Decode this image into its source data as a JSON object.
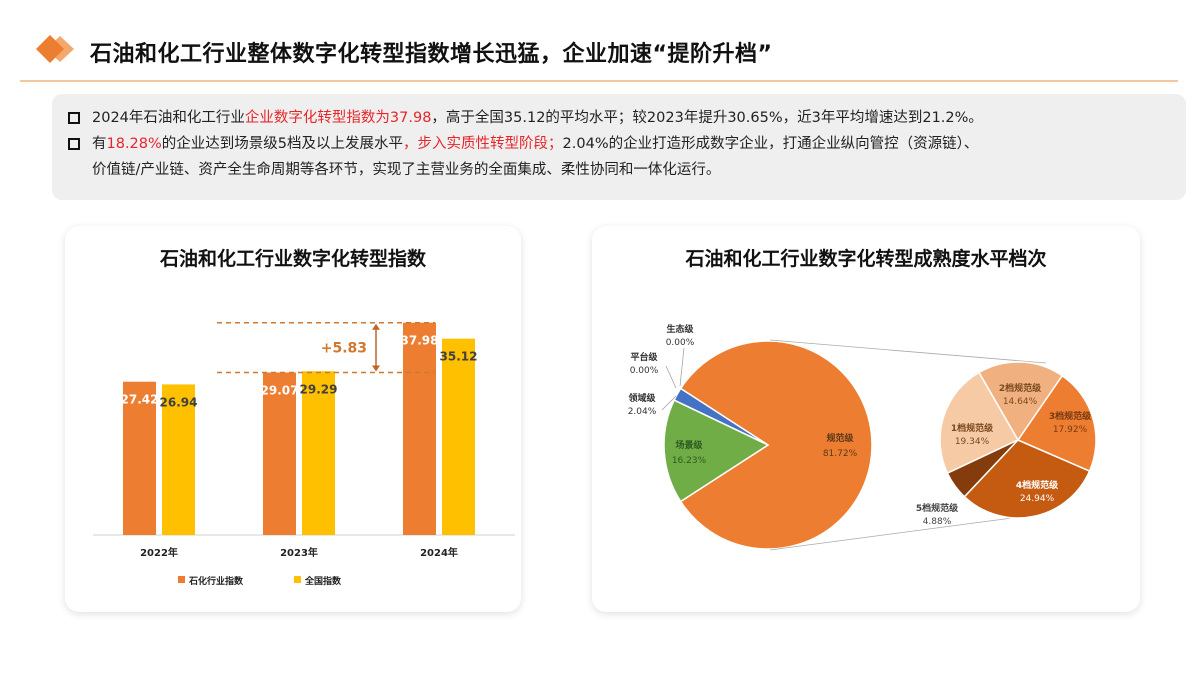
{
  "header": {
    "title": "石油和化工行业整体数字化转型指数增长迅猛，企业加速“提阶升档”",
    "icon": "orange-diamond-icon"
  },
  "summary": {
    "line1": {
      "a": "2024年石油和化工行业",
      "b": "企业数字化转型指数为37.98",
      "c": "，高于全国35.12的平均水平；较2023年提升30.65%，近3年平均增速达到21.2%。"
    },
    "line2": {
      "a": "有",
      "b": "18.28%",
      "c": "的企业达到场景级5档及以上发展水平",
      "d": "，步入实质性转型阶段；",
      "e": "2.04%的企业打造形成数字企业，打通企业纵向管控（资源链）、"
    },
    "line3": "价值链/产业链、资产全生命周期等各环节，实现了主营业务的全面集成、柔性协同和一体化运行。"
  },
  "colors": {
    "accent": "#ed7d31",
    "highlight": "#e8262a",
    "industry": "#ed7d31",
    "national": "#ffc000"
  },
  "chart_data": [
    {
      "type": "bar",
      "title": "石油和化工行业数字化转型指数",
      "categories": [
        "2022年",
        "2023年",
        "2024年"
      ],
      "series": [
        {
          "name": "石化行业指数",
          "color": "#ed7d31",
          "values": [
            27.42,
            29.07,
            37.98
          ]
        },
        {
          "name": "全国指数",
          "color": "#ffc000",
          "values": [
            26.94,
            29.29,
            35.12
          ]
        }
      ],
      "ylim": [
        0,
        38
      ],
      "annotation": "+5.83",
      "legend": "bottom",
      "grid": false
    },
    {
      "type": "pie",
      "title": "石油和化工行业数字化转型成熟度水平档次",
      "slices": [
        {
          "label": "规范级",
          "value": 81.72,
          "text": "81.72%",
          "color": "#ed7d31"
        },
        {
          "label": "场景级",
          "value": 16.23,
          "text": "16.23%",
          "color": "#70ad47"
        },
        {
          "label": "领域级",
          "value": 2.04,
          "text": "2.04%",
          "color": "#4472c4"
        },
        {
          "label": "平台级",
          "value": 0,
          "text": "0.00%",
          "color": "#a5a5a5"
        },
        {
          "label": "生态级",
          "value": 0,
          "text": "0.00%",
          "color": "#5b9bd5"
        }
      ],
      "breakdown_of": "规范级",
      "breakdown": [
        {
          "label": "1档规范级",
          "value": 19.34,
          "text": "19.34%",
          "color": "#f6caa4"
        },
        {
          "label": "5档规范级",
          "value": 4.88,
          "text": "4.88%",
          "color": "#843c0c"
        },
        {
          "label": "4档规范级",
          "value": 24.94,
          "text": "24.94%",
          "color": "#c55a11"
        },
        {
          "label": "3档规范级",
          "value": 17.92,
          "text": "17.92%",
          "color": "#ed7d31"
        },
        {
          "label": "2档规范级",
          "value": 14.64,
          "text": "14.64%",
          "color": "#f1b07f"
        }
      ]
    }
  ]
}
